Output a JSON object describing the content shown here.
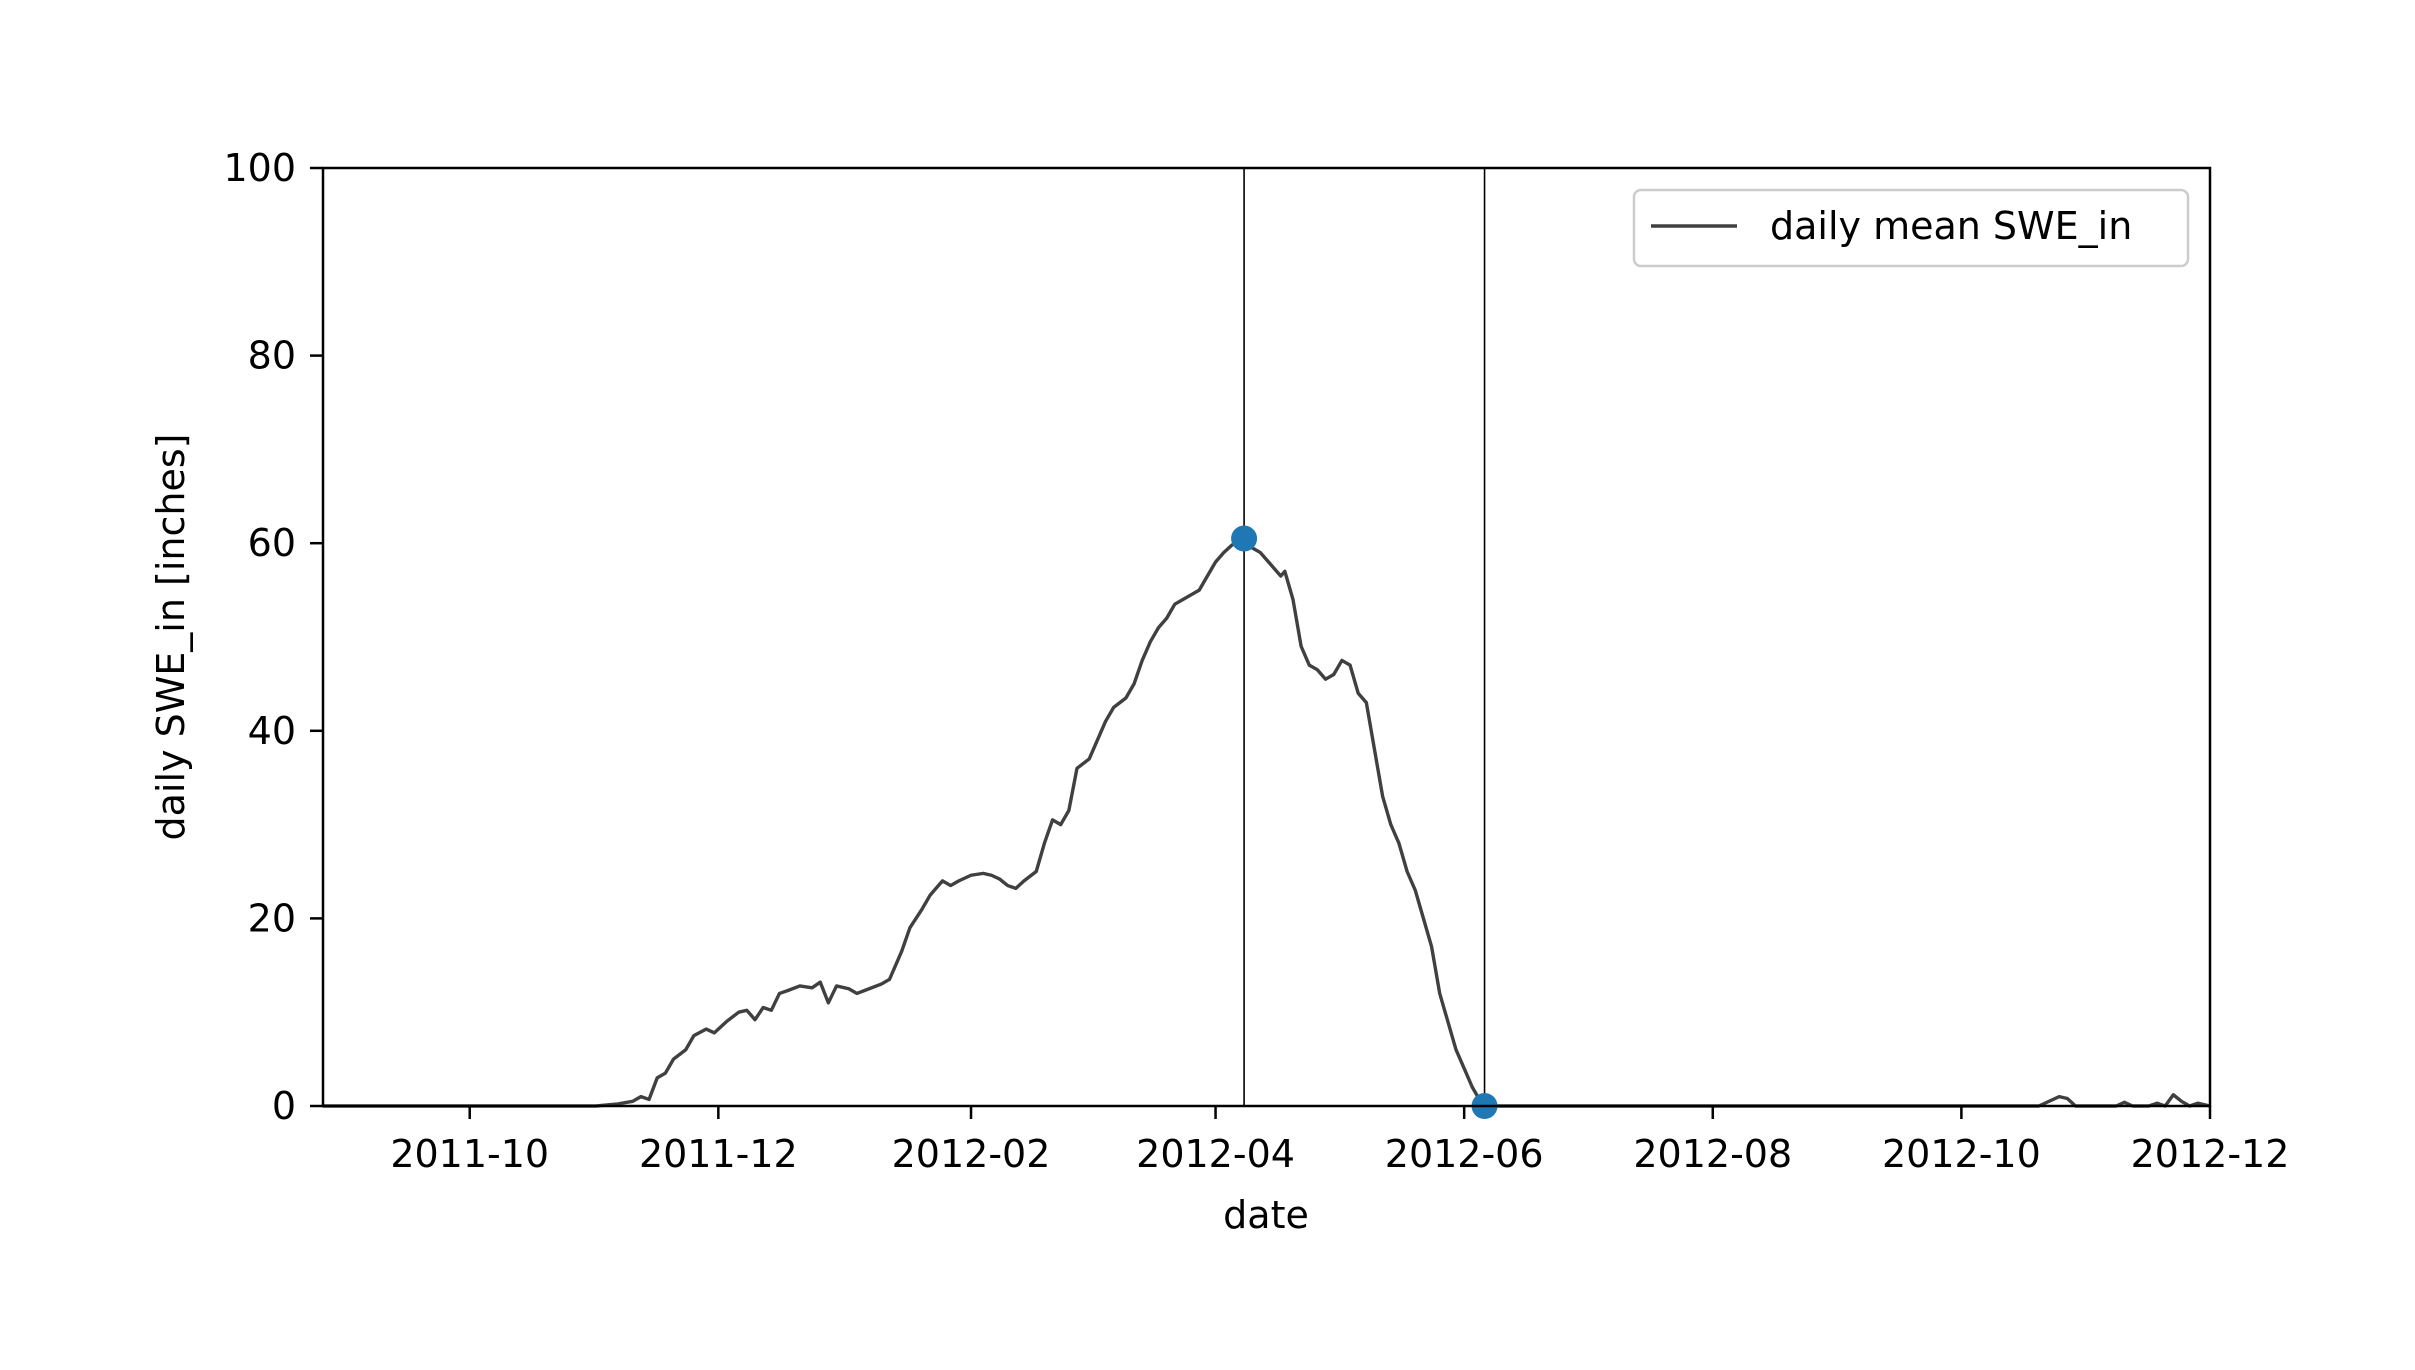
{
  "chart_data": {
    "type": "line",
    "title": "",
    "xlabel": "date",
    "ylabel": "daily SWE_in [inches]",
    "ylim": [
      0,
      100
    ],
    "yticks": [
      0,
      20,
      40,
      60,
      80,
      100
    ],
    "xlim": [
      "2011-08-26",
      "2012-12-01"
    ],
    "xticks": [
      "2011-10-01",
      "2011-12-01",
      "2012-02-01",
      "2012-04-01",
      "2012-06-01",
      "2012-08-01",
      "2012-10-01",
      "2012-12-01"
    ],
    "xtick_labels": [
      "2011-10",
      "2011-12",
      "2012-02",
      "2012-04",
      "2012-06",
      "2012-08",
      "2012-10",
      "2012-12"
    ],
    "legend": {
      "label": "daily mean SWE_in",
      "placement": "top-right"
    },
    "colors": {
      "line": "#404040",
      "marker": "#1f77b4",
      "vline": "#000000",
      "axes": "#000000"
    },
    "series": [
      {
        "name": "daily mean SWE_in",
        "points": [
          [
            "2011-08-26",
            0
          ],
          [
            "2011-09-15",
            0
          ],
          [
            "2011-10-15",
            0
          ],
          [
            "2011-11-01",
            0
          ],
          [
            "2011-11-06",
            0.2
          ],
          [
            "2011-11-10",
            0.5
          ],
          [
            "2011-11-12",
            1.0
          ],
          [
            "2011-11-14",
            0.7
          ],
          [
            "2011-11-16",
            3.0
          ],
          [
            "2011-11-18",
            3.5
          ],
          [
            "2011-11-20",
            5.0
          ],
          [
            "2011-11-23",
            6.0
          ],
          [
            "2011-11-25",
            7.5
          ],
          [
            "2011-11-28",
            8.2
          ],
          [
            "2011-11-30",
            7.8
          ],
          [
            "2011-12-03",
            9.0
          ],
          [
            "2011-12-06",
            10.0
          ],
          [
            "2011-12-08",
            10.2
          ],
          [
            "2011-12-10",
            9.2
          ],
          [
            "2011-12-12",
            10.5
          ],
          [
            "2011-12-14",
            10.2
          ],
          [
            "2011-12-16",
            12.0
          ],
          [
            "2011-12-18",
            12.3
          ],
          [
            "2011-12-21",
            12.8
          ],
          [
            "2011-12-24",
            12.6
          ],
          [
            "2011-12-26",
            13.2
          ],
          [
            "2011-12-28",
            11.0
          ],
          [
            "2011-12-30",
            12.8
          ],
          [
            "2012-01-02",
            12.5
          ],
          [
            "2012-01-04",
            12.0
          ],
          [
            "2012-01-07",
            12.5
          ],
          [
            "2012-01-10",
            13.0
          ],
          [
            "2012-01-12",
            13.5
          ],
          [
            "2012-01-15",
            16.5
          ],
          [
            "2012-01-17",
            19.0
          ],
          [
            "2012-01-20",
            21.0
          ],
          [
            "2012-01-22",
            22.5
          ],
          [
            "2012-01-25",
            24.0
          ],
          [
            "2012-01-27",
            23.5
          ],
          [
            "2012-01-29",
            24.0
          ],
          [
            "2012-02-01",
            24.6
          ],
          [
            "2012-02-04",
            24.8
          ],
          [
            "2012-02-06",
            24.6
          ],
          [
            "2012-02-08",
            24.2
          ],
          [
            "2012-02-10",
            23.5
          ],
          [
            "2012-02-12",
            23.2
          ],
          [
            "2012-02-14",
            24.0
          ],
          [
            "2012-02-17",
            25.0
          ],
          [
            "2012-02-19",
            28.0
          ],
          [
            "2012-02-21",
            30.5
          ],
          [
            "2012-02-23",
            30.0
          ],
          [
            "2012-02-25",
            31.5
          ],
          [
            "2012-02-27",
            36.0
          ],
          [
            "2012-03-01",
            37.0
          ],
          [
            "2012-03-03",
            39.0
          ],
          [
            "2012-03-05",
            41.0
          ],
          [
            "2012-03-07",
            42.5
          ],
          [
            "2012-03-10",
            43.5
          ],
          [
            "2012-03-12",
            45.0
          ],
          [
            "2012-03-14",
            47.5
          ],
          [
            "2012-03-16",
            49.5
          ],
          [
            "2012-03-18",
            51.0
          ],
          [
            "2012-03-20",
            52.0
          ],
          [
            "2012-03-22",
            53.5
          ],
          [
            "2012-03-24",
            54.0
          ],
          [
            "2012-03-26",
            54.5
          ],
          [
            "2012-03-28",
            55.0
          ],
          [
            "2012-03-30",
            56.5
          ],
          [
            "2012-04-01",
            58.0
          ],
          [
            "2012-04-03",
            59.0
          ],
          [
            "2012-04-05",
            59.8
          ],
          [
            "2012-04-08",
            60.5
          ],
          [
            "2012-04-10",
            59.5
          ],
          [
            "2012-04-12",
            59.0
          ],
          [
            "2012-04-14",
            58.0
          ],
          [
            "2012-04-16",
            57.0
          ],
          [
            "2012-04-17",
            56.5
          ],
          [
            "2012-04-18",
            57.0
          ],
          [
            "2012-04-20",
            54.0
          ],
          [
            "2012-04-22",
            49.0
          ],
          [
            "2012-04-24",
            47.0
          ],
          [
            "2012-04-26",
            46.5
          ],
          [
            "2012-04-28",
            45.5
          ],
          [
            "2012-04-30",
            46.0
          ],
          [
            "2012-05-02",
            47.5
          ],
          [
            "2012-05-04",
            47.0
          ],
          [
            "2012-05-06",
            44.0
          ],
          [
            "2012-05-08",
            43.0
          ],
          [
            "2012-05-10",
            38.0
          ],
          [
            "2012-05-12",
            33.0
          ],
          [
            "2012-05-14",
            30.0
          ],
          [
            "2012-05-16",
            28.0
          ],
          [
            "2012-05-18",
            25.0
          ],
          [
            "2012-05-20",
            23.0
          ],
          [
            "2012-05-22",
            20.0
          ],
          [
            "2012-05-24",
            17.0
          ],
          [
            "2012-05-26",
            12.0
          ],
          [
            "2012-05-28",
            9.0
          ],
          [
            "2012-05-30",
            6.0
          ],
          [
            "2012-06-01",
            4.0
          ],
          [
            "2012-06-03",
            2.0
          ],
          [
            "2012-06-05",
            0.5
          ],
          [
            "2012-06-06",
            0
          ],
          [
            "2012-07-15",
            0
          ],
          [
            "2012-09-01",
            0
          ],
          [
            "2012-10-20",
            0
          ],
          [
            "2012-10-23",
            0.6
          ],
          [
            "2012-10-25",
            1.0
          ],
          [
            "2012-10-27",
            0.8
          ],
          [
            "2012-10-29",
            0
          ],
          [
            "2012-11-08",
            0
          ],
          [
            "2012-11-10",
            0.4
          ],
          [
            "2012-11-12",
            0
          ],
          [
            "2012-11-16",
            0
          ],
          [
            "2012-11-18",
            0.3
          ],
          [
            "2012-11-20",
            0
          ],
          [
            "2012-11-22",
            1.2
          ],
          [
            "2012-11-24",
            0.5
          ],
          [
            "2012-11-26",
            0
          ],
          [
            "2012-11-28",
            0.3
          ],
          [
            "2012-12-01",
            0
          ]
        ]
      }
    ],
    "markers": [
      {
        "date": "2012-04-08",
        "value": 60.5
      },
      {
        "date": "2012-06-06",
        "value": 0
      }
    ],
    "vlines": [
      "2012-04-08",
      "2012-06-06"
    ]
  }
}
